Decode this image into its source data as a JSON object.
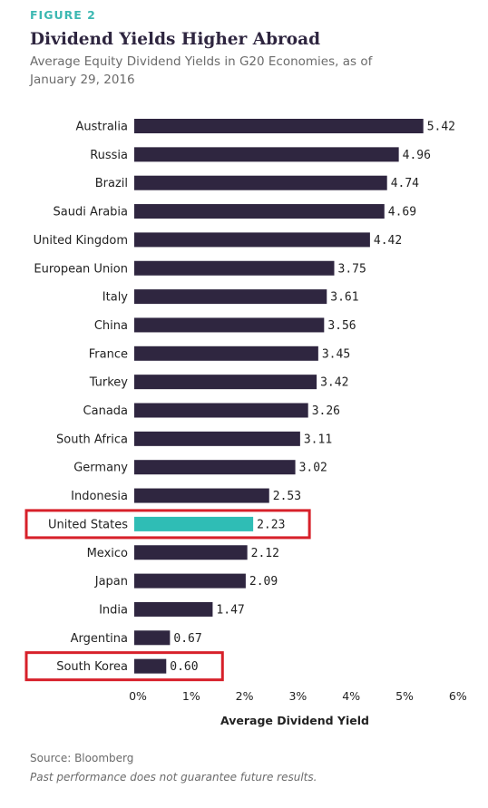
{
  "figure_label": "FIGURE 2",
  "source": "Source: Bloomberg",
  "disclaimer": "Past performance does not guarantee future results.",
  "colors": {
    "bar": "#2f2640",
    "highlight": "#2fbdb5",
    "box": "#d7202a"
  },
  "chart_data": {
    "type": "bar",
    "orientation": "horizontal",
    "title": "Dividend Yields Higher Abroad",
    "subtitle": "Average Equity Dividend Yields in G20 Economies, as of January 29, 2016",
    "xlabel": "Average Dividend Yield",
    "ylabel": "",
    "xlim": [
      0,
      6
    ],
    "ticks": [
      "0%",
      "1%",
      "2%",
      "3%",
      "4%",
      "5%",
      "6%"
    ],
    "categories": [
      "Australia",
      "Russia",
      "Brazil",
      "Saudi Arabia",
      "United Kingdom",
      "European Union",
      "Italy",
      "China",
      "France",
      "Turkey",
      "Canada",
      "South Africa",
      "Germany",
      "Indonesia",
      "United States",
      "Mexico",
      "Japan",
      "India",
      "Argentina",
      "South Korea"
    ],
    "values": [
      5.42,
      4.96,
      4.74,
      4.69,
      4.42,
      3.75,
      3.61,
      3.56,
      3.45,
      3.42,
      3.26,
      3.11,
      3.02,
      2.53,
      2.23,
      2.12,
      2.09,
      1.47,
      0.67,
      0.6
    ],
    "value_labels": [
      "5.42",
      "4.96",
      "4.74",
      "4.69",
      "4.42",
      "3.75",
      "3.61",
      "3.56",
      "3.45",
      "3.42",
      "3.26",
      "3.11",
      "3.02",
      "2.53",
      "2.23",
      "2.12",
      "2.09",
      "1.47",
      "0.67",
      "0.60"
    ],
    "highlighted": [
      "United States"
    ],
    "boxed": [
      "United States",
      "South Korea"
    ],
    "grid": false,
    "legend": "none"
  }
}
